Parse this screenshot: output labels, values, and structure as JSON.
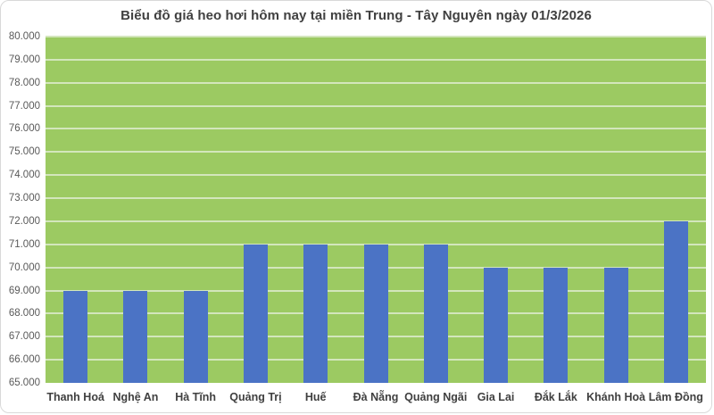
{
  "chart_data": {
    "type": "bar",
    "title": "Biểu đồ giá heo hơi hôm nay tại miền Trung - Tây Nguyên ngày 01/3/2026",
    "categories": [
      "Thanh Hoá",
      "Nghệ An",
      "Hà Tĩnh",
      "Quảng Trị",
      "Huế",
      "Đà Nẵng",
      "Quảng Ngãi",
      "Gia Lai",
      "Đắk Lắk",
      "Khánh Hoà",
      "Lâm Đồng"
    ],
    "values": [
      69000,
      69000,
      69000,
      71000,
      71000,
      71000,
      71000,
      70000,
      70000,
      70000,
      72000
    ],
    "ytick_labels": [
      "65.000",
      "66.000",
      "67.000",
      "68.000",
      "69.000",
      "70.000",
      "71.000",
      "72.000",
      "73.000",
      "74.000",
      "75.000",
      "76.000",
      "77.000",
      "78.000",
      "79.000",
      "80.000"
    ],
    "xlabel": "",
    "ylabel": "",
    "ylim": [
      65000,
      80000
    ],
    "ytick_step": 1000,
    "grid": "horizontal",
    "legend": "none",
    "colors": {
      "bar": "#4b73c5",
      "plot_background": "#9cca62",
      "gridline": "#d3e6bc",
      "title_text": "#404040",
      "ytick_text": "#595959",
      "xtick_text": "#404040",
      "frame_border": "#d9d9d9"
    }
  }
}
